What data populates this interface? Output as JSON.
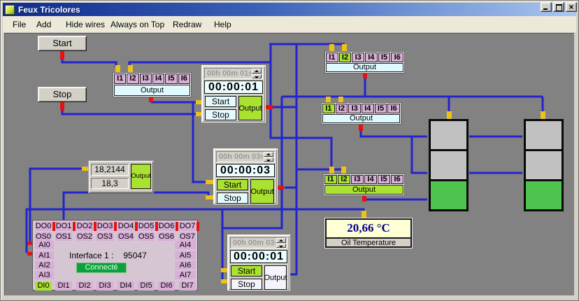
{
  "window": {
    "title": "Feux Tricolores"
  },
  "menu": {
    "items": [
      "File",
      "Add",
      "Hide wires",
      "Always on Top",
      "Redraw",
      "Help"
    ]
  },
  "controls": {
    "start_label": "Start",
    "stop_label": "Stop"
  },
  "and_blocks": [
    {
      "inputs": [
        {
          "label": "I1",
          "active": false
        },
        {
          "label": "I2",
          "active": false
        },
        {
          "label": "I3",
          "active": false
        },
        {
          "label": "I4",
          "active": false
        },
        {
          "label": "I5",
          "active": false
        },
        {
          "label": "I6",
          "active": false
        }
      ],
      "output": {
        "label": "Output",
        "active": false
      }
    },
    {
      "inputs": [
        {
          "label": "I1",
          "active": false
        },
        {
          "label": "I2",
          "active": true
        },
        {
          "label": "I3",
          "active": false
        },
        {
          "label": "I4",
          "active": false
        },
        {
          "label": "I5",
          "active": false
        },
        {
          "label": "I6",
          "active": false
        }
      ],
      "output": {
        "label": "Output",
        "active": false
      }
    },
    {
      "inputs": [
        {
          "label": "I1",
          "active": true
        },
        {
          "label": "I2",
          "active": false
        },
        {
          "label": "I3",
          "active": false
        },
        {
          "label": "I4",
          "active": false
        },
        {
          "label": "I5",
          "active": false
        },
        {
          "label": "I6",
          "active": false
        }
      ],
      "output": {
        "label": "Output",
        "active": false
      }
    },
    {
      "inputs": [
        {
          "label": "I1",
          "active": true
        },
        {
          "label": "I2",
          "active": true
        },
        {
          "label": "I3",
          "active": false
        },
        {
          "label": "I4",
          "active": false
        },
        {
          "label": "I5",
          "active": false
        },
        {
          "label": "I6",
          "active": false
        }
      ],
      "output": {
        "label": "Output",
        "active": true
      }
    }
  ],
  "timers": [
    {
      "preset": "00h 00m 01s",
      "display": "00:00:01",
      "start": {
        "label": "Start",
        "active": false
      },
      "stop": {
        "label": "Stop",
        "active": false
      },
      "output": {
        "label": "Output",
        "active": true
      }
    },
    {
      "preset": "00h 00m 03s",
      "display": "00:00:03",
      "start": {
        "label": "Start",
        "active": true
      },
      "stop": {
        "label": "Stop",
        "active": false
      },
      "output": {
        "label": "Output",
        "active": true
      }
    },
    {
      "preset": "00h 00m 03s",
      "display": "00:00:01",
      "start": {
        "label": "Start",
        "active": true
      },
      "stop": {
        "label": "Stop",
        "active": false
      },
      "output": {
        "label": "Output",
        "active": false
      }
    }
  ],
  "comparator": {
    "current_value": "18,2144",
    "threshold_value": "18,3",
    "output": {
      "label": "Output",
      "active": true
    }
  },
  "interface_panel": {
    "title": "Interface 1 :",
    "device_id": "95047",
    "status": "Connecté",
    "digital_outputs": [
      "DO0",
      "DO1",
      "DO2",
      "DO3",
      "DO4",
      "DO5",
      "DO6",
      "DO7"
    ],
    "output_states": [
      "OS0",
      "OS1",
      "OS2",
      "OS3",
      "OS4",
      "OS5",
      "OS6",
      "OS7"
    ],
    "analog_inputs_left": [
      "AI0",
      "AI1",
      "AI2",
      "AI3"
    ],
    "analog_inputs_right": [
      "AI4",
      "AI5",
      "AI6",
      "AI7"
    ],
    "digital_inputs": [
      {
        "label": "DI0",
        "active": true
      },
      {
        "label": "DI1",
        "active": false
      },
      {
        "label": "DI2",
        "active": false
      },
      {
        "label": "DI3",
        "active": false
      },
      {
        "label": "DI4",
        "active": false
      },
      {
        "label": "DI5",
        "active": false
      },
      {
        "label": "DI6",
        "active": false
      },
      {
        "label": "DI7",
        "active": false
      }
    ]
  },
  "temperature_display": {
    "value": "20,66 °C",
    "label": "Oil Temperature"
  },
  "traffic_lights": [
    {
      "segments": [
        "off",
        "off",
        "green"
      ]
    },
    {
      "segments": [
        "off",
        "off",
        "green"
      ]
    }
  ],
  "colors": {
    "active_green": "#A9E231",
    "cell_pink": "#D7AFD7",
    "output_cyan": "#DFF9FF",
    "wire_blue": "#2323CF",
    "pin_yellow": "#ECC217",
    "pin_red": "#E81010",
    "light_green": "#4EC44E",
    "light_off_gray": "#C1C1C1",
    "temp_bg": "#FFFFD6",
    "temp_text": "#00008B",
    "status_green": "#0AA23C",
    "titlebar_left": "#0F2A8C",
    "titlebar_right": "#A9C7F0"
  }
}
